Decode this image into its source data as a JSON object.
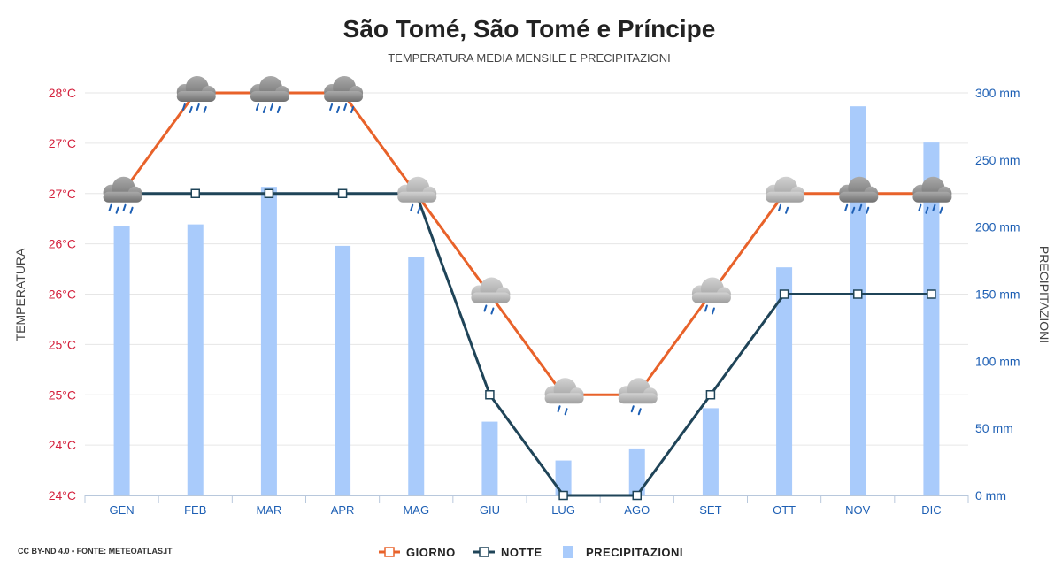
{
  "header": {
    "title": "São Tomé, São Tomé e Príncipe",
    "subtitle": "TEMPERATURA MEDIA MENSILE E PRECIPITAZIONI"
  },
  "footer": {
    "credit": "CC BY-ND 4.0 • FONTE: METEOATLAS.IT"
  },
  "colors": {
    "day": "#e8622a",
    "night": "#1f4458",
    "precip": "#a9cbfb",
    "left_axis": "#d4213d",
    "right_axis": "#1d5fb4"
  },
  "chart_data": {
    "type": "bar+line",
    "categories": [
      "GEN",
      "FEB",
      "MAR",
      "APR",
      "MAG",
      "GIU",
      "LUG",
      "AGO",
      "SET",
      "OTT",
      "NOV",
      "DIC"
    ],
    "y_left": {
      "label": "TEMPERATURA",
      "ticks": [
        "24°C",
        "24°C",
        "25°C",
        "25°C",
        "26°C",
        "26°C",
        "27°C",
        "27°C",
        "28°C"
      ],
      "range": [
        24,
        28
      ]
    },
    "y_right": {
      "label": "PRECIPITAZIONI",
      "ticks": [
        "0 mm",
        "50 mm",
        "100 mm",
        "150 mm",
        "200 mm",
        "250 mm",
        "300 mm"
      ],
      "range": [
        0,
        300
      ]
    },
    "series": [
      {
        "name": "GIORNO",
        "type": "line",
        "axis": "left",
        "values": [
          27,
          28,
          28,
          28,
          27,
          26,
          25,
          25,
          26,
          27,
          27,
          27
        ]
      },
      {
        "name": "NOTTE",
        "type": "line",
        "axis": "left",
        "values": [
          27,
          27,
          27,
          27,
          27,
          25,
          24,
          24,
          25,
          26,
          26,
          26
        ]
      },
      {
        "name": "PRECIPITAZIONI",
        "type": "bar",
        "axis": "right",
        "values": [
          201,
          202,
          230,
          186,
          178,
          55,
          26,
          35,
          65,
          170,
          290,
          263
        ]
      }
    ],
    "weather_icons": [
      "heavy-rain-cloud-icon",
      "heavy-rain-cloud-icon",
      "heavy-rain-cloud-icon",
      "heavy-rain-cloud-icon",
      "rain-cloud-icon",
      "rain-cloud-icon",
      "rain-cloud-icon",
      "rain-cloud-icon",
      "rain-cloud-icon",
      "rain-cloud-icon",
      "heavy-rain-cloud-icon",
      "heavy-rain-cloud-icon"
    ],
    "grid": true,
    "legend_position": "bottom-center"
  }
}
